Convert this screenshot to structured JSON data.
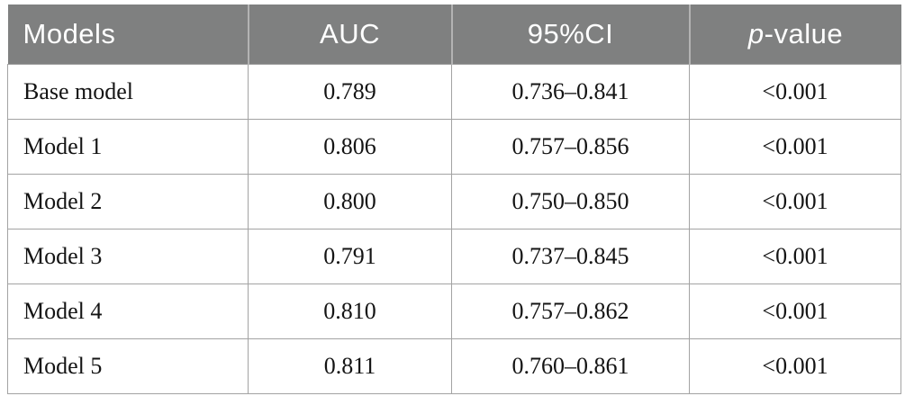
{
  "figure": {
    "kind": "paper-table"
  },
  "table": {
    "columns": [
      {
        "label": "Models",
        "align": "left"
      },
      {
        "label": "AUC",
        "align": "center"
      },
      {
        "label": "95%CI",
        "align": "center"
      },
      {
        "label": "p-value",
        "align": "center"
      }
    ],
    "p_header": {
      "italic": "p",
      "rest": "-value"
    },
    "rows": [
      {
        "model": "Base model",
        "auc": "0.789",
        "ci": "0.736–0.841",
        "p": "<0.001"
      },
      {
        "model": "Model 1",
        "auc": "0.806",
        "ci": "0.757–0.856",
        "p": "<0.001"
      },
      {
        "model": "Model 2",
        "auc": "0.800",
        "ci": "0.750–0.850",
        "p": "<0.001"
      },
      {
        "model": "Model 3",
        "auc": "0.791",
        "ci": "0.737–0.845",
        "p": "<0.001"
      },
      {
        "model": "Model 4",
        "auc": "0.810",
        "ci": "0.757–0.862",
        "p": "<0.001"
      },
      {
        "model": "Model 5",
        "auc": "0.811",
        "ci": "0.760–0.861",
        "p": "<0.001"
      }
    ]
  },
  "colors": {
    "header_bg": "#7f8080",
    "header_text": "#ffffff",
    "header_divider": "#b3b3b3",
    "grid_line": "#a3a3a3",
    "body_text": "#141414"
  }
}
